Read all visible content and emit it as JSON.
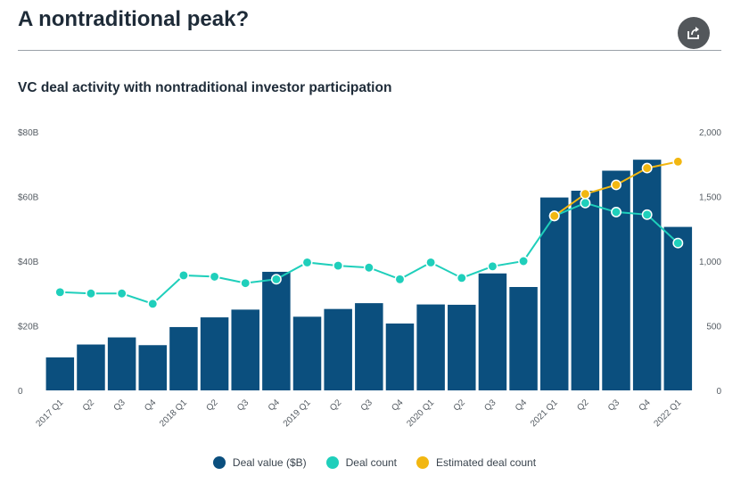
{
  "page": {
    "title": "A nontraditional peak?"
  },
  "share": {
    "icon": "share-icon"
  },
  "chart_data": {
    "type": "bar",
    "title": "VC deal activity with nontraditional investor participation",
    "categories": [
      "2017 Q1",
      "Q2",
      "Q3",
      "Q4",
      "2018 Q1",
      "Q2",
      "Q3",
      "Q4",
      "2019 Q1",
      "Q2",
      "Q3",
      "Q4",
      "2020 Q1",
      "Q2",
      "Q3",
      "Q4",
      "2021 Q1",
      "Q2",
      "Q3",
      "Q4",
      "2022 Q1"
    ],
    "y_left": {
      "ticks": [
        "$80B",
        "$60B",
        "$40B",
        "$20B",
        "0"
      ],
      "range": [
        0,
        80
      ],
      "unit": "$B"
    },
    "y_right": {
      "ticks": [
        "2,000",
        "1,500",
        "1,000",
        "500",
        "0"
      ],
      "range": [
        0,
        2000
      ]
    },
    "grid": false,
    "legend_position": "bottom",
    "series": [
      {
        "name": "Deal value ($B)",
        "kind": "bar",
        "axis": "left",
        "color": "#0b4f7e",
        "values": [
          10.2,
          14.2,
          16.4,
          14.0,
          19.6,
          22.6,
          25.0,
          36.7,
          22.8,
          25.2,
          27.0,
          20.7,
          26.6,
          26.5,
          36.2,
          32.0,
          59.7,
          61.8,
          68.0,
          71.4,
          50.6
        ]
      },
      {
        "name": "Deal count",
        "kind": "line",
        "axis": "right",
        "color": "#1fcfbb",
        "values": [
          760,
          750,
          750,
          670,
          890,
          880,
          830,
          860,
          990,
          965,
          950,
          860,
          990,
          870,
          960,
          1000,
          1350,
          1450,
          1380,
          1360,
          1140
        ]
      },
      {
        "name": "Estimated deal count",
        "kind": "line",
        "axis": "right",
        "color": "#f2b711",
        "values": [
          null,
          null,
          null,
          null,
          null,
          null,
          null,
          null,
          null,
          null,
          null,
          null,
          null,
          null,
          null,
          null,
          1350,
          1520,
          1590,
          1720,
          1770
        ]
      }
    ]
  }
}
